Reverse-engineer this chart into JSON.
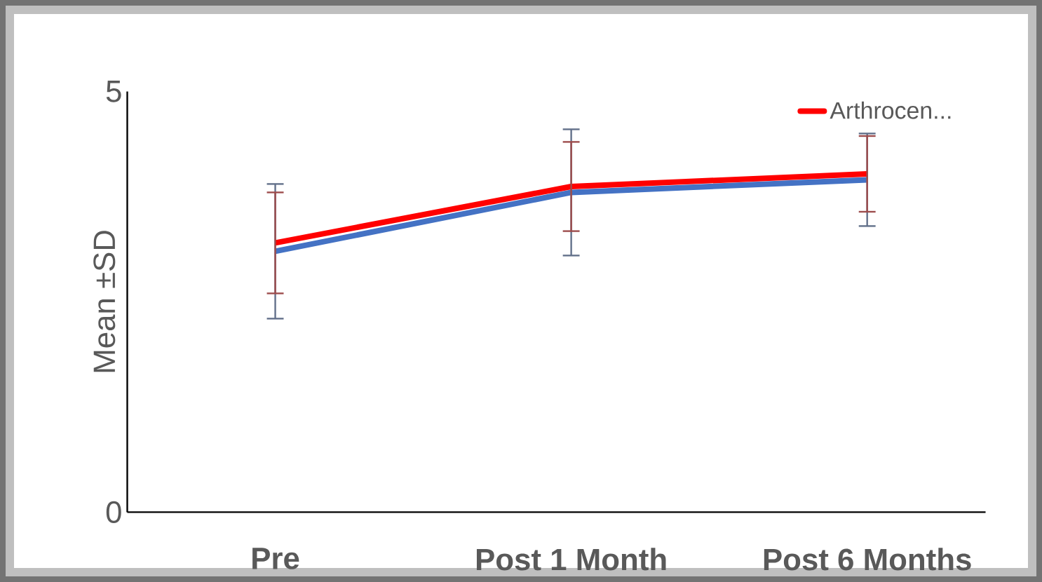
{
  "chart_data": {
    "type": "line",
    "ylabel": "Mean ±SD",
    "categories": [
      "Pre",
      "Post 1 Month",
      "Post 6 Months"
    ],
    "ylim": [
      0,
      5
    ],
    "yticks": [
      0,
      5
    ],
    "legend": "top right",
    "grid": false,
    "marker": "none",
    "line_style": "solid",
    "series": [
      {
        "name": "Arthrocen...",
        "color": "#ff0000",
        "values": [
          3.2,
          3.87,
          4.02
        ],
        "errors": [
          0.6,
          0.53,
          0.45
        ]
      },
      {
        "color": "#4472c4",
        "values": [
          3.1,
          3.8,
          3.95
        ],
        "errors": [
          0.8,
          0.75,
          0.55
        ]
      }
    ]
  }
}
